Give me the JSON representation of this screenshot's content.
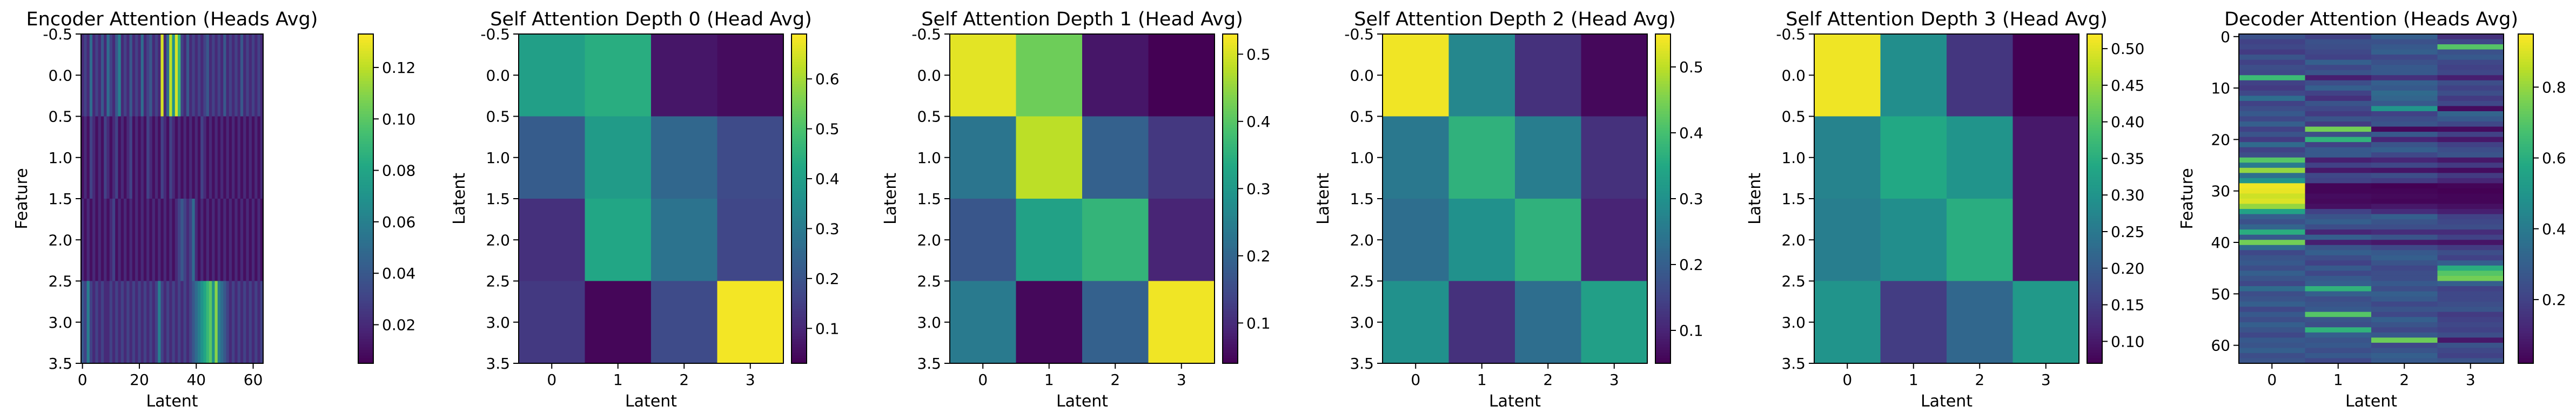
{
  "chart_data": [
    {
      "type": "heatmap",
      "title": "Encoder Attention (Heads Avg)",
      "xlabel": "Latent",
      "ylabel": "Feature",
      "xlim": [
        -0.5,
        63.5
      ],
      "ylim": [
        3.5,
        -0.5
      ],
      "xticks": [
        0,
        20,
        40,
        60
      ],
      "yticks": [
        -0.5,
        0.0,
        0.5,
        1.0,
        1.5,
        2.0,
        2.5,
        3.0,
        3.5
      ],
      "colorbar": {
        "vmin": 0.005,
        "vmax": 0.133,
        "ticks": [
          0.02,
          0.04,
          0.06,
          0.08,
          0.1,
          0.12
        ]
      },
      "colormap": "viridis",
      "values": [
        [
          0.02,
          0.03,
          0.02,
          0.05,
          0.02,
          0.03,
          0.02,
          0.04,
          0.02,
          0.05,
          0.03,
          0.02,
          0.04,
          0.06,
          0.02,
          0.03,
          0.02,
          0.04,
          0.02,
          0.03,
          0.02,
          0.05,
          0.02,
          0.03,
          0.04,
          0.02,
          0.03,
          0.02,
          0.125,
          0.02,
          0.05,
          0.12,
          0.07,
          0.125,
          0.09,
          0.03,
          0.02,
          0.04,
          0.02,
          0.03,
          0.02,
          0.03,
          0.02,
          0.03,
          0.04,
          0.02,
          0.03,
          0.02,
          0.03,
          0.02,
          0.04,
          0.02,
          0.03,
          0.02,
          0.03,
          0.02,
          0.04,
          0.02,
          0.03,
          0.02,
          0.03,
          0.02,
          0.03,
          0.02
        ],
        [
          0.01,
          0.02,
          0.01,
          0.03,
          0.02,
          0.01,
          0.02,
          0.01,
          0.03,
          0.02,
          0.01,
          0.02,
          0.03,
          0.01,
          0.02,
          0.01,
          0.02,
          0.03,
          0.01,
          0.02,
          0.01,
          0.02,
          0.01,
          0.03,
          0.02,
          0.01,
          0.02,
          0.01,
          0.03,
          0.02,
          0.01,
          0.03,
          0.02,
          0.01,
          0.02,
          0.01,
          0.02,
          0.01,
          0.02,
          0.01,
          0.02,
          0.01,
          0.03,
          0.02,
          0.01,
          0.02,
          0.01,
          0.02,
          0.01,
          0.02,
          0.01,
          0.02,
          0.01,
          0.02,
          0.01,
          0.02,
          0.01,
          0.02,
          0.01,
          0.02,
          0.01,
          0.02,
          0.01,
          0.02
        ],
        [
          0.02,
          0.01,
          0.02,
          0.01,
          0.02,
          0.01,
          0.02,
          0.01,
          0.02,
          0.01,
          0.02,
          0.03,
          0.01,
          0.02,
          0.01,
          0.02,
          0.01,
          0.02,
          0.01,
          0.02,
          0.01,
          0.02,
          0.01,
          0.02,
          0.01,
          0.02,
          0.01,
          0.02,
          0.01,
          0.02,
          0.01,
          0.02,
          0.01,
          0.02,
          0.03,
          0.04,
          0.03,
          0.02,
          0.03,
          0.05,
          0.02,
          0.01,
          0.02,
          0.01,
          0.02,
          0.01,
          0.02,
          0.01,
          0.02,
          0.01,
          0.02,
          0.01,
          0.02,
          0.01,
          0.02,
          0.01,
          0.02,
          0.01,
          0.02,
          0.01,
          0.02,
          0.01,
          0.02,
          0.01
        ],
        [
          0.04,
          0.03,
          0.06,
          0.03,
          0.02,
          0.03,
          0.02,
          0.03,
          0.02,
          0.02,
          0.03,
          0.02,
          0.03,
          0.02,
          0.03,
          0.02,
          0.03,
          0.02,
          0.03,
          0.02,
          0.03,
          0.02,
          0.03,
          0.02,
          0.03,
          0.02,
          0.03,
          0.06,
          0.03,
          0.02,
          0.03,
          0.02,
          0.03,
          0.02,
          0.03,
          0.02,
          0.03,
          0.02,
          0.03,
          0.04,
          0.05,
          0.06,
          0.07,
          0.08,
          0.09,
          0.1,
          0.07,
          0.11,
          0.06,
          0.05,
          0.04,
          0.03,
          0.02,
          0.03,
          0.02,
          0.03,
          0.02,
          0.03,
          0.02,
          0.03,
          0.02,
          0.03,
          0.02,
          0.03
        ]
      ]
    },
    {
      "type": "heatmap",
      "title": "Self Attention Depth 0 (Head Avg)",
      "xlabel": "Latent",
      "ylabel": "Latent",
      "xticks": [
        0,
        1,
        2,
        3
      ],
      "yticks": [
        -0.5,
        0.0,
        0.5,
        1.0,
        1.5,
        2.0,
        2.5,
        3.0,
        3.5
      ],
      "colorbar": {
        "vmin": 0.03,
        "vmax": 0.69,
        "ticks": [
          0.1,
          0.2,
          0.3,
          0.4,
          0.5,
          0.6
        ]
      },
      "colormap": "viridis",
      "values": [
        [
          0.4,
          0.44,
          0.07,
          0.05
        ],
        [
          0.22,
          0.39,
          0.25,
          0.18
        ],
        [
          0.12,
          0.42,
          0.28,
          0.17
        ],
        [
          0.14,
          0.04,
          0.18,
          0.68
        ]
      ]
    },
    {
      "type": "heatmap",
      "title": "Self Attention Depth 1 (Head Avg)",
      "xlabel": "Latent",
      "ylabel": "Latent",
      "xticks": [
        0,
        1,
        2,
        3
      ],
      "yticks": [
        -0.5,
        0.0,
        0.5,
        1.0,
        1.5,
        2.0,
        2.5,
        3.0,
        3.5
      ],
      "colorbar": {
        "vmin": 0.04,
        "vmax": 0.53,
        "ticks": [
          0.1,
          0.2,
          0.3,
          0.4,
          0.5
        ]
      },
      "colormap": "viridis",
      "values": [
        [
          0.51,
          0.42,
          0.07,
          0.04
        ],
        [
          0.23,
          0.48,
          0.19,
          0.12
        ],
        [
          0.17,
          0.32,
          0.36,
          0.09
        ],
        [
          0.24,
          0.05,
          0.19,
          0.52
        ]
      ]
    },
    {
      "type": "heatmap",
      "title": "Self Attention Depth 2 (Head Avg)",
      "xlabel": "Latent",
      "ylabel": "Latent",
      "xticks": [
        0,
        1,
        2,
        3
      ],
      "yticks": [
        -0.5,
        0.0,
        0.5,
        1.0,
        1.5,
        2.0,
        2.5,
        3.0,
        3.5
      ],
      "colorbar": {
        "vmin": 0.05,
        "vmax": 0.55,
        "ticks": [
          0.1,
          0.2,
          0.3,
          0.4,
          0.5
        ]
      },
      "colormap": "viridis",
      "values": [
        [
          0.54,
          0.28,
          0.12,
          0.06
        ],
        [
          0.25,
          0.37,
          0.26,
          0.12
        ],
        [
          0.23,
          0.3,
          0.37,
          0.1
        ],
        [
          0.3,
          0.12,
          0.23,
          0.33
        ]
      ]
    },
    {
      "type": "heatmap",
      "title": "Self Attention Depth 3 (Head Avg)",
      "xlabel": "Latent",
      "ylabel": "Latent",
      "xticks": [
        0,
        1,
        2,
        3
      ],
      "yticks": [
        -0.5,
        0.0,
        0.5,
        1.0,
        1.5,
        2.0,
        2.5,
        3.0,
        3.5
      ],
      "colorbar": {
        "vmin": 0.07,
        "vmax": 0.52,
        "ticks": [
          0.1,
          0.15,
          0.2,
          0.25,
          0.3,
          0.35,
          0.4,
          0.45,
          0.5
        ]
      },
      "colormap": "viridis",
      "values": [
        [
          0.51,
          0.29,
          0.14,
          0.07
        ],
        [
          0.27,
          0.34,
          0.3,
          0.1
        ],
        [
          0.26,
          0.29,
          0.35,
          0.1
        ],
        [
          0.3,
          0.15,
          0.22,
          0.31
        ]
      ]
    },
    {
      "type": "heatmap",
      "title": "Decoder Attention (Heads Avg)",
      "xlabel": "Latent",
      "ylabel": "Feature",
      "xticks": [
        0,
        1,
        2,
        3
      ],
      "yticks": [
        0,
        10,
        20,
        30,
        40,
        50,
        60
      ],
      "colorbar": {
        "vmin": 0.02,
        "vmax": 0.95,
        "ticks": [
          0.2,
          0.4,
          0.6,
          0.8
        ]
      },
      "colormap": "viridis",
      "values": [
        [
          0.25,
          0.2,
          0.3,
          0.15
        ],
        [
          0.2,
          0.25,
          0.25,
          0.22
        ],
        [
          0.22,
          0.24,
          0.28,
          0.7
        ],
        [
          0.18,
          0.22,
          0.3,
          0.25
        ],
        [
          0.26,
          0.2,
          0.22,
          0.28
        ],
        [
          0.2,
          0.3,
          0.25,
          0.22
        ],
        [
          0.24,
          0.22,
          0.28,
          0.2
        ],
        [
          0.22,
          0.26,
          0.28,
          0.22
        ],
        [
          0.65,
          0.1,
          0.15,
          0.1
        ],
        [
          0.2,
          0.24,
          0.3,
          0.24
        ],
        [
          0.18,
          0.3,
          0.28,
          0.2
        ],
        [
          0.22,
          0.2,
          0.34,
          0.24
        ],
        [
          0.35,
          0.15,
          0.32,
          0.18
        ],
        [
          0.2,
          0.26,
          0.28,
          0.22
        ],
        [
          0.24,
          0.22,
          0.5,
          0.05
        ],
        [
          0.28,
          0.18,
          0.2,
          0.32
        ],
        [
          0.22,
          0.26,
          0.24,
          0.28
        ],
        [
          0.3,
          0.18,
          0.26,
          0.22
        ],
        [
          0.2,
          0.75,
          0.04,
          0.05
        ],
        [
          0.26,
          0.24,
          0.28,
          0.2
        ],
        [
          0.18,
          0.62,
          0.12,
          0.08
        ],
        [
          0.34,
          0.2,
          0.26,
          0.2
        ],
        [
          0.2,
          0.28,
          0.3,
          0.24
        ],
        [
          0.24,
          0.28,
          0.22,
          0.26
        ],
        [
          0.7,
          0.1,
          0.12,
          0.08
        ],
        [
          0.4,
          0.2,
          0.22,
          0.18
        ],
        [
          0.8,
          0.08,
          0.07,
          0.05
        ],
        [
          0.36,
          0.22,
          0.24,
          0.18
        ],
        [
          0.5,
          0.2,
          0.18,
          0.12
        ],
        [
          0.93,
          0.03,
          0.02,
          0.03
        ],
        [
          0.92,
          0.03,
          0.03,
          0.02
        ],
        [
          0.88,
          0.05,
          0.04,
          0.03
        ],
        [
          0.9,
          0.04,
          0.03,
          0.03
        ],
        [
          0.8,
          0.06,
          0.08,
          0.06
        ],
        [
          0.55,
          0.2,
          0.14,
          0.1
        ],
        [
          0.3,
          0.26,
          0.3,
          0.2
        ],
        [
          0.25,
          0.3,
          0.26,
          0.22
        ],
        [
          0.32,
          0.24,
          0.24,
          0.24
        ],
        [
          0.6,
          0.12,
          0.14,
          0.14
        ],
        [
          0.28,
          0.3,
          0.26,
          0.2
        ],
        [
          0.75,
          0.1,
          0.08,
          0.07
        ],
        [
          0.34,
          0.26,
          0.22,
          0.18
        ],
        [
          0.22,
          0.3,
          0.28,
          0.24
        ],
        [
          0.26,
          0.24,
          0.3,
          0.2
        ],
        [
          0.28,
          0.2,
          0.26,
          0.3
        ],
        [
          0.24,
          0.28,
          0.22,
          0.6
        ],
        [
          0.3,
          0.22,
          0.24,
          0.7
        ],
        [
          0.26,
          0.28,
          0.24,
          0.75
        ],
        [
          0.22,
          0.3,
          0.28,
          0.3
        ],
        [
          0.34,
          0.62,
          0.24,
          0.2
        ],
        [
          0.24,
          0.3,
          0.3,
          0.22
        ],
        [
          0.26,
          0.24,
          0.28,
          0.22
        ],
        [
          0.3,
          0.26,
          0.22,
          0.24
        ],
        [
          0.22,
          0.28,
          0.26,
          0.26
        ],
        [
          0.28,
          0.7,
          0.22,
          0.18
        ],
        [
          0.24,
          0.26,
          0.3,
          0.2
        ],
        [
          0.3,
          0.24,
          0.26,
          0.22
        ],
        [
          0.26,
          0.62,
          0.22,
          0.2
        ],
        [
          0.22,
          0.3,
          0.28,
          0.24
        ],
        [
          0.28,
          0.26,
          0.74,
          0.08
        ],
        [
          0.26,
          0.28,
          0.22,
          0.26
        ],
        [
          0.3,
          0.24,
          0.26,
          0.22
        ],
        [
          0.24,
          0.28,
          0.3,
          0.2
        ],
        [
          0.26,
          0.22,
          0.28,
          0.26
        ]
      ]
    }
  ]
}
